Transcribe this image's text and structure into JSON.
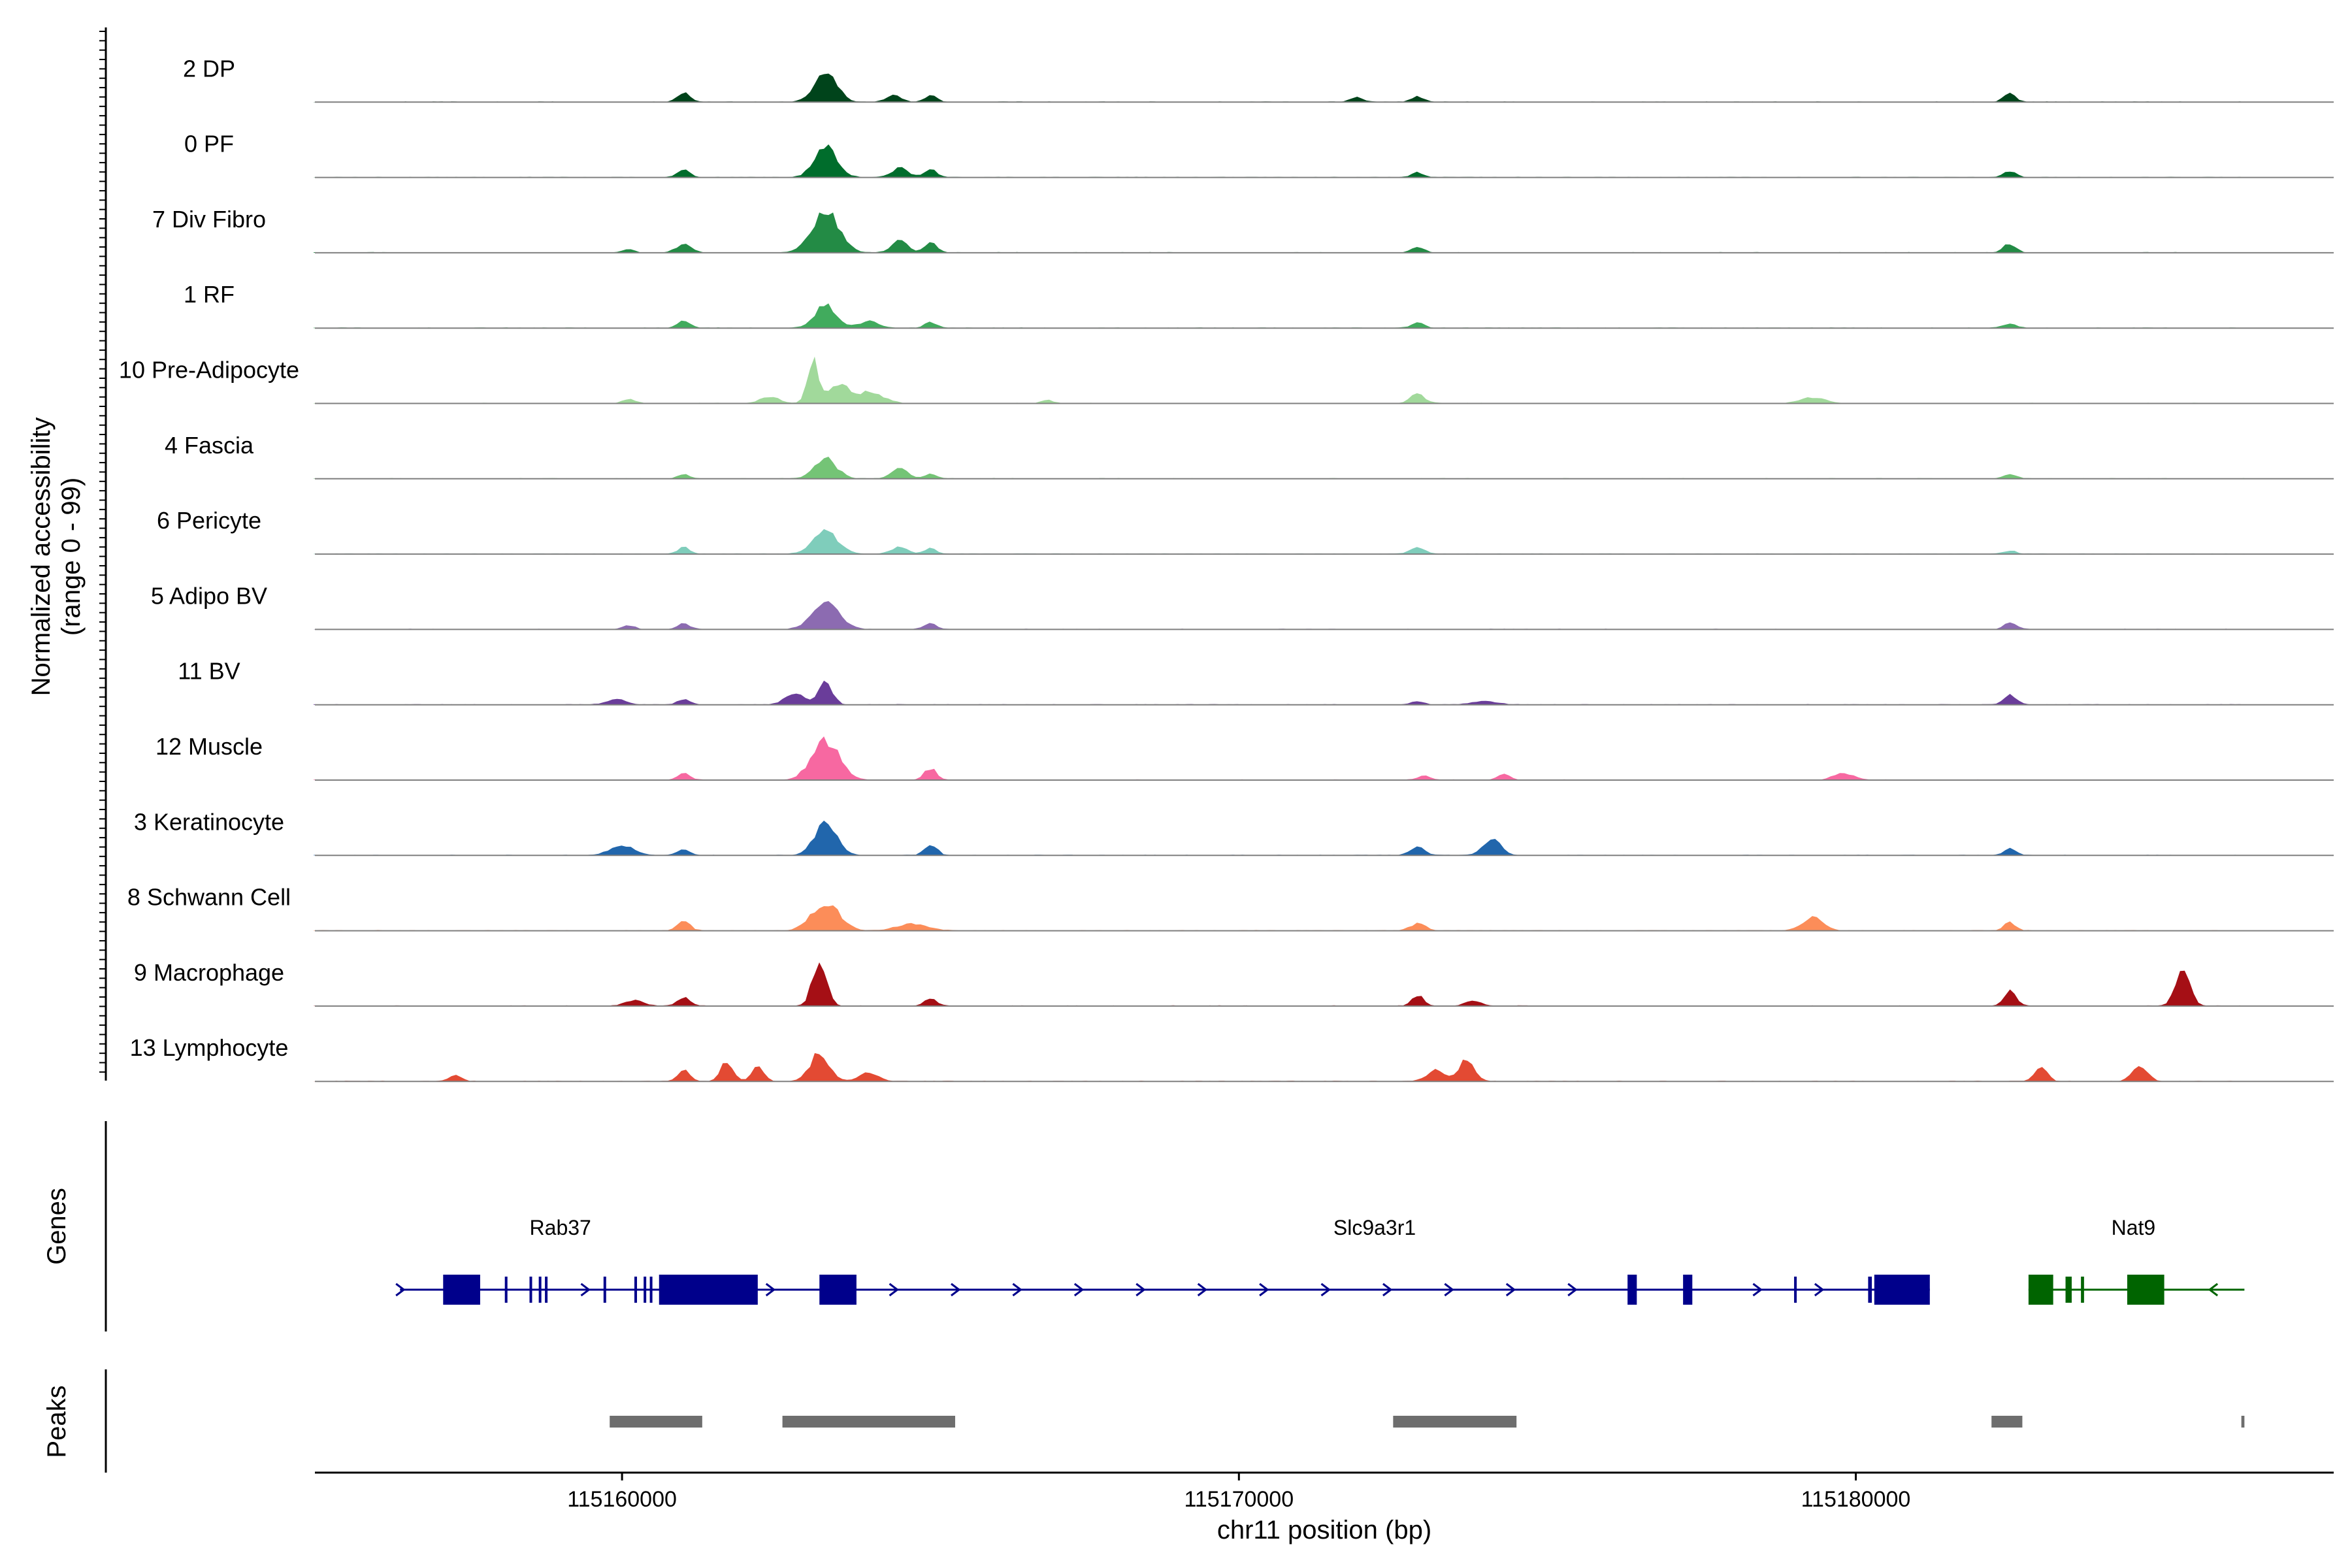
{
  "chart_data": {
    "type": "area",
    "title": "",
    "ylabel": "Normalized accessibility",
    "ylabel_range": "(range 0 - 99)",
    "xlabel": "chr11 position (bp)",
    "xlim": [
      115155000,
      115188000
    ],
    "x_ticks": [
      115160000,
      115170000,
      115180000
    ],
    "x_tick_labels": [
      "115160000",
      "115170000",
      "115180000"
    ],
    "track_start": 115155000,
    "track_end": 115186300,
    "genes_label": "Genes",
    "peaks_label": "Peaks",
    "tracks": [
      {
        "name": "2 DP",
        "color": "#00441b",
        "peaks": [
          [
            115163300,
            0.55,
            180
          ],
          [
            115161000,
            0.17,
            100
          ],
          [
            115165000,
            0.12,
            100
          ],
          [
            115164400,
            0.12,
            120
          ],
          [
            115182500,
            0.14,
            100
          ],
          [
            115172900,
            0.1,
            100
          ],
          [
            115171900,
            0.08,
            100
          ]
        ]
      },
      {
        "name": "0 PF",
        "color": "#006d2c",
        "peaks": [
          [
            115163300,
            0.55,
            180
          ],
          [
            115161000,
            0.14,
            100
          ],
          [
            115164500,
            0.17,
            130
          ],
          [
            115165000,
            0.14,
            100
          ],
          [
            115182500,
            0.12,
            100
          ],
          [
            115172900,
            0.08,
            100
          ]
        ]
      },
      {
        "name": "7 Div Fibro",
        "color": "#238b45",
        "peaks": [
          [
            115163300,
            0.72,
            220
          ],
          [
            115161000,
            0.15,
            120
          ],
          [
            115164500,
            0.22,
            130
          ],
          [
            115165000,
            0.17,
            100
          ],
          [
            115182500,
            0.16,
            100
          ],
          [
            115172900,
            0.1,
            100
          ],
          [
            115160100,
            0.06,
            90
          ]
        ]
      },
      {
        "name": "1 RF",
        "color": "#41ab5d",
        "peaks": [
          [
            115163300,
            0.4,
            180
          ],
          [
            115161000,
            0.12,
            100
          ],
          [
            115164000,
            0.12,
            150
          ],
          [
            115165000,
            0.1,
            100
          ],
          [
            115182500,
            0.08,
            100
          ],
          [
            115172900,
            0.1,
            100
          ]
        ]
      },
      {
        "name": "10 Pre-Adipocyte",
        "color": "#a1d99b",
        "peaks": [
          [
            115163100,
            0.75,
            90
          ],
          [
            115163500,
            0.35,
            150
          ],
          [
            115164000,
            0.2,
            220
          ],
          [
            115162400,
            0.12,
            150
          ],
          [
            115172900,
            0.16,
            120
          ],
          [
            115179300,
            0.1,
            200
          ],
          [
            115160100,
            0.08,
            100
          ],
          [
            115166900,
            0.06,
            100
          ]
        ]
      },
      {
        "name": "4 Fascia",
        "color": "#74c476",
        "peaks": [
          [
            115163300,
            0.35,
            180
          ],
          [
            115164500,
            0.17,
            130
          ],
          [
            115161000,
            0.08,
            100
          ],
          [
            115165000,
            0.08,
            100
          ],
          [
            115182500,
            0.08,
            100
          ]
        ]
      },
      {
        "name": "6 Pericyte",
        "color": "#7fcdbb",
        "peaks": [
          [
            115163300,
            0.42,
            200
          ],
          [
            115161000,
            0.12,
            100
          ],
          [
            115164500,
            0.12,
            130
          ],
          [
            115165000,
            0.1,
            100
          ],
          [
            115172900,
            0.12,
            120
          ],
          [
            115182500,
            0.06,
            100
          ]
        ]
      },
      {
        "name": "5 Adipo BV",
        "color": "#8c6bb1",
        "peaks": [
          [
            115163300,
            0.45,
            220
          ],
          [
            115161000,
            0.1,
            100
          ],
          [
            115165000,
            0.1,
            100
          ],
          [
            115160100,
            0.07,
            100
          ],
          [
            115182500,
            0.12,
            100
          ]
        ]
      },
      {
        "name": "11 BV",
        "color": "#6a3d9a",
        "peaks": [
          [
            115163300,
            0.4,
            110
          ],
          [
            115162800,
            0.22,
            150
          ],
          [
            115161000,
            0.1,
            100
          ],
          [
            115159900,
            0.1,
            150
          ],
          [
            115182500,
            0.18,
            100
          ],
          [
            115174000,
            0.06,
            200
          ],
          [
            115172900,
            0.06,
            100
          ]
        ]
      },
      {
        "name": "12 Muscle",
        "color": "#f768a1",
        "peaks": [
          [
            115163300,
            0.7,
            220
          ],
          [
            115165000,
            0.2,
            100
          ],
          [
            115161000,
            0.12,
            100
          ],
          [
            115179800,
            0.12,
            160
          ],
          [
            115174300,
            0.1,
            100
          ],
          [
            115173000,
            0.08,
            100
          ]
        ]
      },
      {
        "name": "3 Keratinocyte",
        "color": "#2166ac",
        "peaks": [
          [
            115163300,
            0.55,
            180
          ],
          [
            115165000,
            0.2,
            100
          ],
          [
            115174100,
            0.3,
            140
          ],
          [
            115160000,
            0.18,
            200
          ],
          [
            115161000,
            0.1,
            100
          ],
          [
            115172900,
            0.15,
            120
          ],
          [
            115182500,
            0.12,
            100
          ]
        ]
      },
      {
        "name": "8 Schwann Cell",
        "color": "#fc8d59",
        "peaks": [
          [
            115163300,
            0.5,
            220
          ],
          [
            115161000,
            0.16,
            100
          ],
          [
            115179300,
            0.24,
            160
          ],
          [
            115164700,
            0.12,
            250
          ],
          [
            115172900,
            0.12,
            130
          ],
          [
            115182500,
            0.14,
            100
          ]
        ]
      },
      {
        "name": "9 Macrophage",
        "color": "#a50f15",
        "peaks": [
          [
            115163200,
            0.85,
            110
          ],
          [
            115161000,
            0.16,
            100
          ],
          [
            115165000,
            0.14,
            100
          ],
          [
            115182500,
            0.26,
            100
          ],
          [
            115185300,
            0.75,
            110
          ],
          [
            115172900,
            0.18,
            100
          ],
          [
            115173800,
            0.1,
            120
          ],
          [
            115160200,
            0.1,
            150
          ]
        ]
      },
      {
        "name": "13 Lymphocyte",
        "color": "#e34a33",
        "peaks": [
          [
            115163200,
            0.5,
            150
          ],
          [
            115161700,
            0.35,
            100
          ],
          [
            115162200,
            0.25,
            100
          ],
          [
            115173700,
            0.4,
            120
          ],
          [
            115173200,
            0.2,
            150
          ],
          [
            115184600,
            0.3,
            120
          ],
          [
            115183000,
            0.25,
            100
          ],
          [
            115161000,
            0.2,
            100
          ],
          [
            115164000,
            0.15,
            150
          ],
          [
            115157300,
            0.12,
            100
          ]
        ]
      }
    ],
    "genes": [
      {
        "name": "Rab37",
        "label_x": 115159000
      },
      {
        "name": "Slc9a3r1",
        "label_x": 115172200
      },
      {
        "name": "Nat9",
        "label_x": 115184500
      }
    ],
    "gene_models": [
      {
        "name": "Rab37-Slc9a3r1",
        "strand": "+",
        "color": "#00008b",
        "start": 115156400,
        "end": 115181200,
        "exons": [
          [
            115157100,
            115157700
          ],
          [
            115158100,
            115158130
          ],
          [
            115158500,
            115158530
          ],
          [
            115158650,
            115158680
          ],
          [
            115158750,
            115158780
          ],
          [
            115159700,
            115159730
          ],
          [
            115160200,
            115160230
          ],
          [
            115160350,
            115160380
          ],
          [
            115160450,
            115160480
          ],
          [
            115160600,
            115162200
          ],
          [
            115163200,
            115163800
          ],
          [
            115176300,
            115176450
          ],
          [
            115177200,
            115177350
          ],
          [
            115179000,
            115179030
          ],
          [
            115180200,
            115180260
          ],
          [
            115180300,
            115181200
          ]
        ]
      },
      {
        "name": "Nat9",
        "strand": "-",
        "color": "#006400",
        "start": 115182800,
        "end": 115186300,
        "exons": [
          [
            115182800,
            115183200
          ],
          [
            115183400,
            115183500
          ],
          [
            115183650,
            115183700
          ],
          [
            115184400,
            115185000
          ]
        ]
      }
    ],
    "peaks_regions": [
      [
        115159800,
        115161300
      ],
      [
        115162600,
        115165400
      ],
      [
        115172500,
        115174500
      ],
      [
        115182200,
        115182700
      ],
      [
        115186250,
        115186300
      ]
    ]
  }
}
